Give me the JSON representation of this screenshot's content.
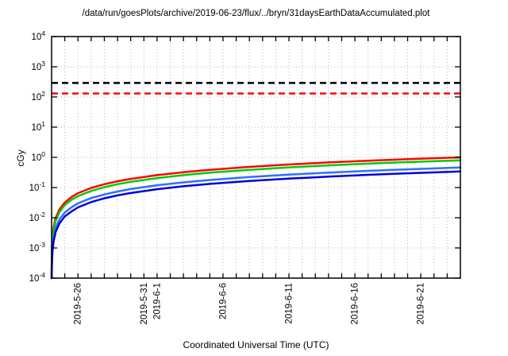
{
  "chart_data": {
    "type": "line",
    "title": "/data/run/goesPlots/archive/2019-06-23/flux/../bryn/31daysEarthDataAccumulated.plot",
    "xlabel": "Coordinated Universal Time (UTC)",
    "ylabel": "cGy",
    "y_scale": "log",
    "y_exp_min": -4,
    "y_exp_max": 4,
    "y_tick_exponents": [
      4,
      3,
      2,
      1,
      0,
      -1,
      -2,
      -3,
      -4
    ],
    "x_days_total": 31,
    "x_minor_tick_every_days": 1,
    "x_labeled_ticks": [
      {
        "day": 2,
        "label": "2019-5-26"
      },
      {
        "day": 7,
        "label": "2019-5-31"
      },
      {
        "day": 8,
        "label": "2019-6-1"
      },
      {
        "day": 13,
        "label": "2019-6-6"
      },
      {
        "day": 18,
        "label": "2019-6-11"
      },
      {
        "day": 23,
        "label": "2019-6-16"
      },
      {
        "day": 28,
        "label": "2019-6-21"
      }
    ],
    "grid": true,
    "legend": "none",
    "thresholds": [
      {
        "name": "black-dashed-limit",
        "value": 290,
        "color": "#000000",
        "style": "dashed"
      },
      {
        "name": "red-dashed-limit",
        "value": 130,
        "color": "#ff0000",
        "style": "dashed"
      }
    ],
    "t_days": [
      0.003,
      0.01,
      0.02,
      0.04,
      0.08,
      0.15,
      0.3,
      0.6,
      1,
      1.5,
      2,
      3,
      4,
      5,
      6,
      8,
      10,
      12,
      15,
      18,
      21,
      24,
      27,
      31
    ],
    "series": [
      {
        "name": "series-red",
        "color": "#ff0000",
        "final_cgy": 1.0,
        "values": [
          0.0001,
          0.00032,
          0.00065,
          0.0013,
          0.0026,
          0.0048,
          0.0097,
          0.019,
          0.032,
          0.048,
          0.065,
          0.097,
          0.129,
          0.161,
          0.194,
          0.258,
          0.323,
          0.387,
          0.484,
          0.581,
          0.677,
          0.774,
          0.871,
          1.0
        ]
      },
      {
        "name": "series-green",
        "color": "#00cc00",
        "final_cgy": 0.8,
        "values": [
          0.0001,
          0.00026,
          0.00052,
          0.001,
          0.0021,
          0.0039,
          0.0077,
          0.0155,
          0.026,
          0.039,
          0.052,
          0.077,
          0.103,
          0.129,
          0.155,
          0.206,
          0.258,
          0.31,
          0.387,
          0.465,
          0.542,
          0.619,
          0.697,
          0.8
        ]
      },
      {
        "name": "series-lightblue",
        "color": "#2f6fff",
        "final_cgy": 0.46,
        "values": [
          0.0001,
          0.00015,
          0.0003,
          0.00059,
          0.0012,
          0.0022,
          0.0045,
          0.0089,
          0.0148,
          0.022,
          0.03,
          0.045,
          0.059,
          0.074,
          0.089,
          0.119,
          0.148,
          0.178,
          0.223,
          0.267,
          0.312,
          0.356,
          0.401,
          0.46
        ]
      },
      {
        "name": "series-darkblue",
        "color": "#0000dd",
        "final_cgy": 0.34,
        "values": [
          0.0001,
          0.00011,
          0.00022,
          0.00044,
          0.00088,
          0.0016,
          0.0033,
          0.0066,
          0.011,
          0.016,
          0.022,
          0.033,
          0.044,
          0.055,
          0.066,
          0.088,
          0.11,
          0.132,
          0.165,
          0.197,
          0.23,
          0.263,
          0.296,
          0.34
        ]
      }
    ]
  }
}
